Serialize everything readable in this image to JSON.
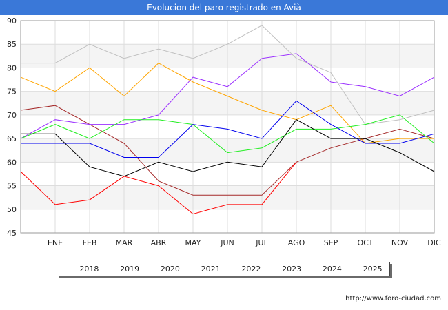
{
  "title": "Evolucion del paro registrado en Avià",
  "footer": "http://www.foro-ciudad.com",
  "chart_data": {
    "type": "line",
    "x": [
      "",
      "ENE",
      "FEB",
      "MAR",
      "ABR",
      "MAY",
      "JUN",
      "JUL",
      "AGO",
      "SEP",
      "OCT",
      "NOV",
      "DIC"
    ],
    "ylim": [
      45,
      90
    ],
    "yticks": [
      45,
      50,
      55,
      60,
      65,
      70,
      75,
      80,
      85,
      90
    ],
    "grid": true,
    "legend": "bottom",
    "series": [
      {
        "name": "2018",
        "color": "#c0c0c0",
        "values": [
          81,
          81,
          85,
          82,
          84,
          82,
          85,
          89,
          82,
          79,
          68,
          69,
          71
        ]
      },
      {
        "name": "2019",
        "color": "#a52a2a",
        "values": [
          71,
          72,
          68,
          64,
          56,
          53,
          53,
          53,
          60,
          63,
          65,
          67,
          65
        ]
      },
      {
        "name": "2020",
        "color": "#9b30ff",
        "values": [
          65,
          69,
          68,
          68,
          70,
          78,
          76,
          82,
          83,
          77,
          76,
          74,
          78
        ]
      },
      {
        "name": "2021",
        "color": "#ffa500",
        "values": [
          78,
          75,
          80,
          74,
          81,
          77,
          74,
          71,
          69,
          72,
          64,
          65,
          65
        ]
      },
      {
        "name": "2022",
        "color": "#22ee22",
        "values": [
          65,
          68,
          65,
          69,
          69,
          68,
          62,
          63,
          67,
          67,
          68,
          70,
          64
        ]
      },
      {
        "name": "2023",
        "color": "#0000ee",
        "values": [
          64,
          64,
          64,
          61,
          61,
          68,
          67,
          65,
          73,
          68,
          64,
          64,
          66
        ]
      },
      {
        "name": "2024",
        "color": "#000000",
        "values": [
          66,
          66,
          59,
          57,
          60,
          58,
          60,
          59,
          69,
          65,
          65,
          62,
          58
        ]
      },
      {
        "name": "2025",
        "color": "#ff0000",
        "values": [
          58,
          51,
          52,
          57,
          55,
          49,
          51,
          51,
          60,
          null,
          null,
          null,
          null
        ]
      }
    ]
  }
}
